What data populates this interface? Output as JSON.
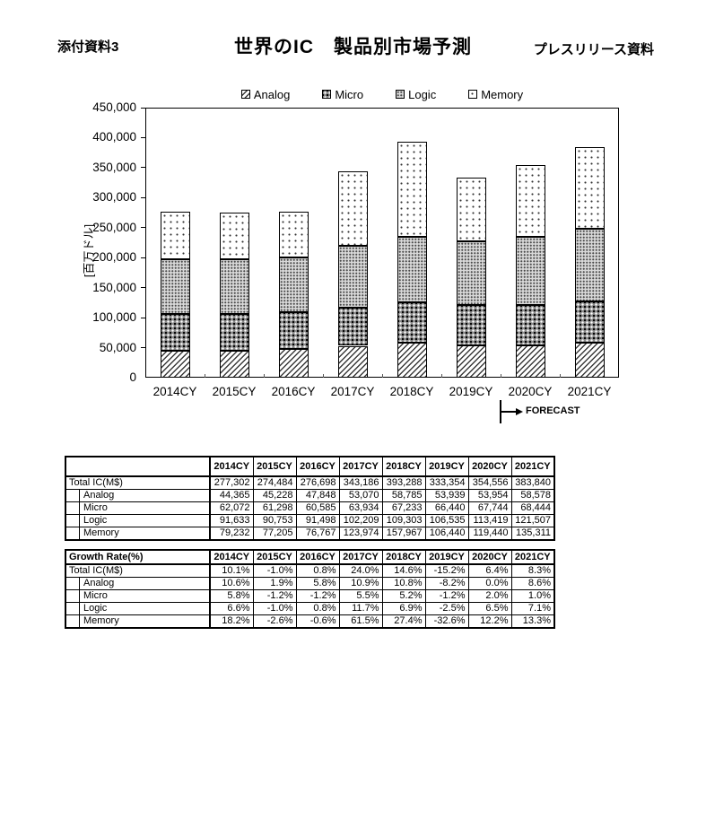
{
  "page": {
    "doc_ref": "添付資料3",
    "title": "世界のIC　製品別市場予測",
    "subtitle": "プレスリリース資料"
  },
  "chart_data": {
    "type": "bar",
    "stacked": true,
    "categories": [
      "2014CY",
      "2015CY",
      "2016CY",
      "2017CY",
      "2018CY",
      "2019CY",
      "2020CY",
      "2021CY"
    ],
    "series": [
      {
        "name": "Analog",
        "pattern": "diagonal-hatch",
        "values": [
          44365,
          45228,
          47848,
          53070,
          58785,
          53939,
          53954,
          58578
        ]
      },
      {
        "name": "Micro",
        "pattern": "dense-grid",
        "values": [
          62072,
          61298,
          60585,
          63934,
          67233,
          66440,
          67744,
          68444
        ]
      },
      {
        "name": "Logic",
        "pattern": "dotted-gray",
        "values": [
          91633,
          90753,
          91498,
          102209,
          109303,
          106535,
          113419,
          121507
        ]
      },
      {
        "name": "Memory",
        "pattern": "sparse-dots",
        "values": [
          79232,
          77205,
          76767,
          123974,
          157967,
          106440,
          119440,
          135311
        ]
      }
    ],
    "totals": [
      277302,
      274484,
      276698,
      343186,
      393288,
      333354,
      354556,
      383840
    ],
    "ylabel": "[百万ドル]",
    "ylim": [
      0,
      450000
    ],
    "ytick_step": 50000,
    "grid": false,
    "legend_position": "top",
    "forecast_label": "FORECAST",
    "forecast_starts_at": "2020CY",
    "bar_color": "#000000",
    "background_color": "#ffffff"
  },
  "tables": [
    {
      "name": "market-size",
      "header": [
        "",
        "2014CY",
        "2015CY",
        "2016CY",
        "2017CY",
        "2018CY",
        "2019CY",
        "2020CY",
        "2021CY"
      ],
      "rows": [
        {
          "label": "Total IC(M$)",
          "indent": false,
          "values": [
            "277,302",
            "274,484",
            "276,698",
            "343,186",
            "393,288",
            "333,354",
            "354,556",
            "383,840"
          ]
        },
        {
          "label": "Analog",
          "indent": true,
          "values": [
            "44,365",
            "45,228",
            "47,848",
            "53,070",
            "58,785",
            "53,939",
            "53,954",
            "58,578"
          ]
        },
        {
          "label": "Micro",
          "indent": true,
          "values": [
            "62,072",
            "61,298",
            "60,585",
            "63,934",
            "67,233",
            "66,440",
            "67,744",
            "68,444"
          ]
        },
        {
          "label": "Logic",
          "indent": true,
          "values": [
            "91,633",
            "90,753",
            "91,498",
            "102,209",
            "109,303",
            "106,535",
            "113,419",
            "121,507"
          ]
        },
        {
          "label": "Memory",
          "indent": true,
          "values": [
            "79,232",
            "77,205",
            "76,767",
            "123,974",
            "157,967",
            "106,440",
            "119,440",
            "135,311"
          ]
        }
      ]
    },
    {
      "name": "growth-rate",
      "header": [
        "Growth Rate(%)",
        "2014CY",
        "2015CY",
        "2016CY",
        "2017CY",
        "2018CY",
        "2019CY",
        "2020CY",
        "2021CY"
      ],
      "rows": [
        {
          "label": "Total IC(M$)",
          "indent": false,
          "values": [
            "10.1%",
            "-1.0%",
            "0.8%",
            "24.0%",
            "14.6%",
            "-15.2%",
            "6.4%",
            "8.3%"
          ]
        },
        {
          "label": "Analog",
          "indent": true,
          "values": [
            "10.6%",
            "1.9%",
            "5.8%",
            "10.9%",
            "10.8%",
            "-8.2%",
            "0.0%",
            "8.6%"
          ]
        },
        {
          "label": "Micro",
          "indent": true,
          "values": [
            "5.8%",
            "-1.2%",
            "-1.2%",
            "5.5%",
            "5.2%",
            "-1.2%",
            "2.0%",
            "1.0%"
          ]
        },
        {
          "label": "Logic",
          "indent": true,
          "values": [
            "6.6%",
            "-1.0%",
            "0.8%",
            "11.7%",
            "6.9%",
            "-2.5%",
            "6.5%",
            "7.1%"
          ]
        },
        {
          "label": "Memory",
          "indent": true,
          "values": [
            "18.2%",
            "-2.6%",
            "-0.6%",
            "61.5%",
            "27.4%",
            "-32.6%",
            "12.2%",
            "13.3%"
          ]
        }
      ]
    }
  ]
}
